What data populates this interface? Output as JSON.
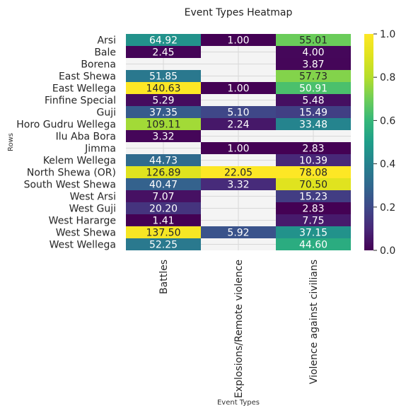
{
  "chart_data": {
    "type": "heatmap",
    "title": "Event Types Heatmap",
    "xlabel": "Event Types",
    "ylabel": "Rows",
    "columns": [
      "Battles",
      "Explosions/Remote violence",
      "Violence against civilians"
    ],
    "rows": [
      "Arsi",
      "Bale",
      "Borena",
      "East Shewa",
      "East Wellega",
      "Finfine Special",
      "Guji",
      "Horo Gudru Wellega",
      "Ilu Aba Bora",
      "Jimma",
      "Kelem Wellega",
      "North Shewa (OR)",
      "South West Shewa",
      "West Arsi",
      "West Guji",
      "West Hararge",
      "West Shewa",
      "West Wellega"
    ],
    "values": [
      [
        64.92,
        1.0,
        55.01
      ],
      [
        2.45,
        null,
        4.0
      ],
      [
        null,
        null,
        3.87
      ],
      [
        51.85,
        null,
        57.73
      ],
      [
        140.63,
        1.0,
        50.91
      ],
      [
        5.29,
        null,
        5.48
      ],
      [
        37.35,
        5.1,
        15.49
      ],
      [
        109.11,
        2.24,
        33.48
      ],
      [
        3.32,
        null,
        null
      ],
      [
        null,
        1.0,
        2.83
      ],
      [
        44.73,
        null,
        10.39
      ],
      [
        126.89,
        22.05,
        78.08
      ],
      [
        40.47,
        3.32,
        70.5
      ],
      [
        7.07,
        null,
        15.23
      ],
      [
        20.2,
        null,
        2.83
      ],
      [
        1.41,
        null,
        7.75
      ],
      [
        137.5,
        5.92,
        37.15
      ],
      [
        52.25,
        null,
        44.6
      ]
    ],
    "colormap": "viridis",
    "colorbar": {
      "ticks": [
        "0.0",
        "0.2",
        "0.4",
        "0.6",
        "0.8",
        "1.0"
      ],
      "range": [
        0,
        1
      ]
    },
    "missing_color": "#f4f4f4",
    "grid": true
  }
}
